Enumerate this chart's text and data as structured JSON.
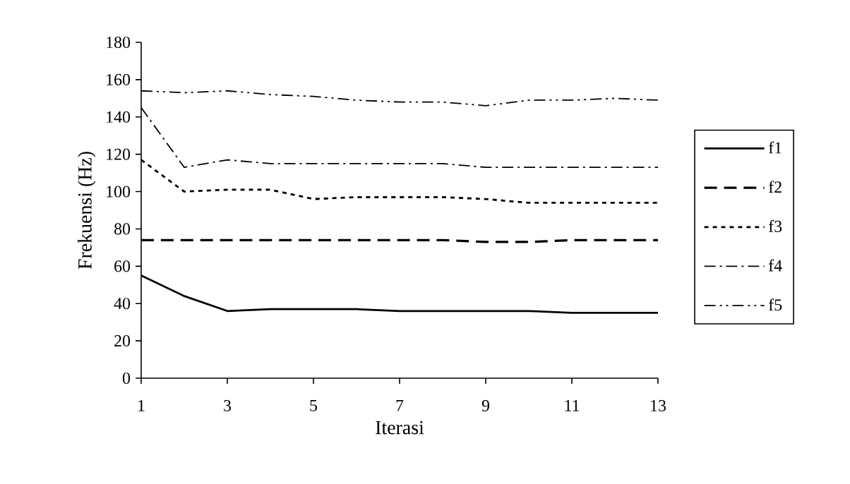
{
  "chart_data": {
    "type": "line",
    "xlabel": "Iterasi",
    "ylabel": "Frekuensi (Hz)",
    "x": [
      1,
      2,
      3,
      4,
      5,
      6,
      7,
      8,
      9,
      10,
      11,
      12,
      13
    ],
    "xlim": [
      1,
      13
    ],
    "xticks": [
      1,
      3,
      5,
      7,
      9,
      11,
      13
    ],
    "ylim": [
      0,
      180
    ],
    "yticks": [
      0,
      20,
      40,
      60,
      80,
      100,
      120,
      140,
      160,
      180
    ],
    "grid": false,
    "legend": "right",
    "marker": "none",
    "series": [
      {
        "name": "f1",
        "color": "#000000",
        "line_style": "solid",
        "values": [
          55,
          44,
          36,
          37,
          37,
          37,
          36,
          36,
          36,
          36,
          35,
          35,
          35
        ]
      },
      {
        "name": "f2",
        "color": "#000000",
        "line_style": "dashed",
        "values": [
          74,
          74,
          74,
          74,
          74,
          74,
          74,
          74,
          73,
          73,
          74,
          74,
          74
        ]
      },
      {
        "name": "f3",
        "color": "#000000",
        "line_style": "dotted",
        "values": [
          117,
          100,
          101,
          101,
          96,
          97,
          97,
          97,
          96,
          94,
          94,
          94,
          94
        ]
      },
      {
        "name": "f4",
        "color": "#000000",
        "line_style": "dashdot",
        "values": [
          145,
          113,
          117,
          115,
          115,
          115,
          115,
          115,
          113,
          113,
          113,
          113,
          113
        ]
      },
      {
        "name": "f5",
        "color": "#000000",
        "line_style": "dashdotdot",
        "values": [
          154,
          153,
          154,
          152,
          151,
          149,
          148,
          148,
          146,
          149,
          149,
          150,
          149
        ]
      }
    ]
  }
}
